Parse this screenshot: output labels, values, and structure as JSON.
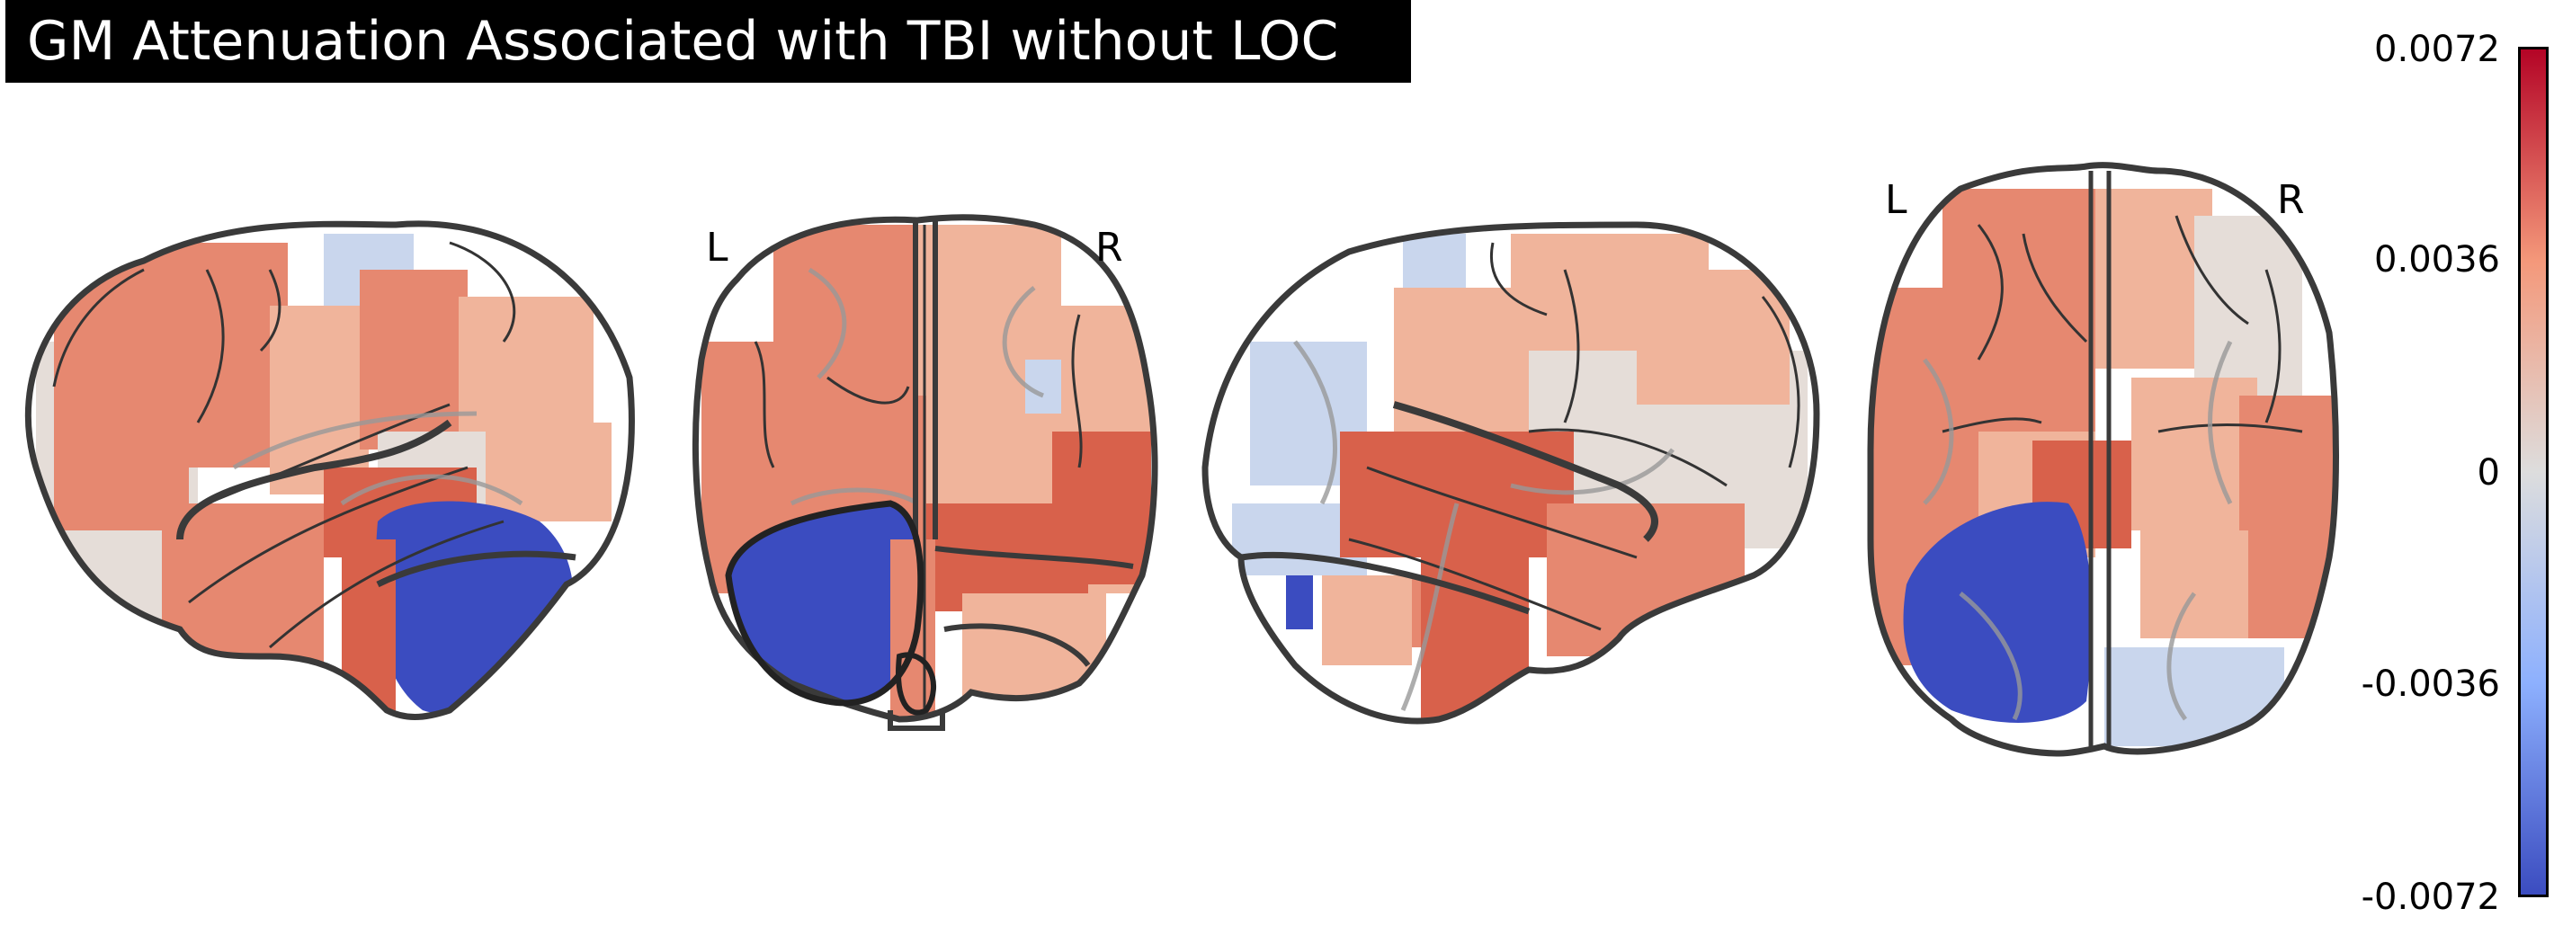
{
  "figure": {
    "title": "GM Attenuation Associated with TBI without LOC",
    "views": {
      "sagittal_left": {
        "hemisphere_labels": []
      },
      "coronal": {
        "hemisphere_labels": [
          "L",
          "R"
        ]
      },
      "sagittal_right": {
        "hemisphere_labels": []
      },
      "axial": {
        "hemisphere_labels": [
          "L",
          "R"
        ]
      }
    },
    "colorbar": {
      "colormap": "cold_hot",
      "ticks": [
        "0.0072",
        "0.0036",
        "0",
        "-0.0036",
        "-0.0072"
      ],
      "max": 0.0072,
      "min": -0.0072
    },
    "colors": {
      "strong_positive": "#d8614b",
      "moderate_positive": "#e68870",
      "weak_positive": "#f0b49b",
      "near_zero": "#e5ddd8",
      "weak_negative": "#c9d6ed",
      "strong_negative": "#3b4cc0",
      "outline": "#3a3a3a"
    }
  }
}
